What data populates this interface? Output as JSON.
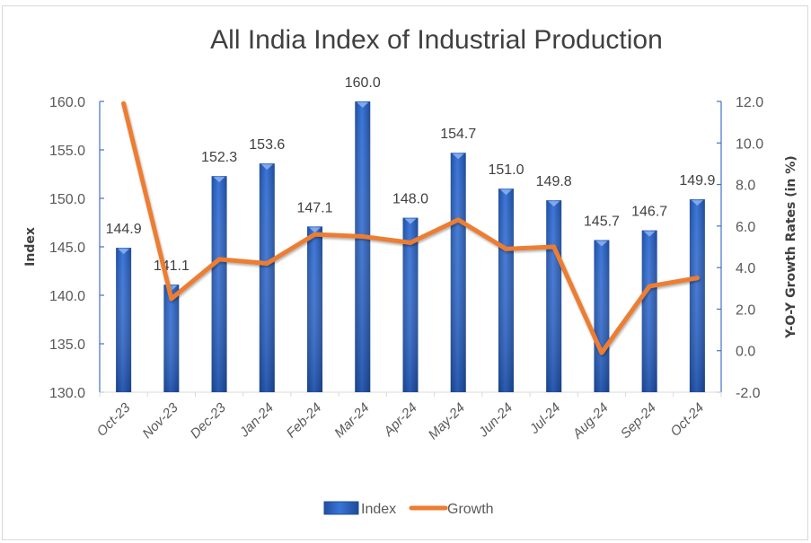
{
  "chart_data": {
    "type": "bar",
    "title": "All India Index of Industrial Production",
    "categories": [
      "Oct-23",
      "Nov-23",
      "Dec-23",
      "Jan-24",
      "Feb-24",
      "Mar-24",
      "Apr-24",
      "May-24",
      "Jun-24",
      "Jul-24",
      "Aug-24",
      "Sep-24",
      "Oct-24"
    ],
    "series": [
      {
        "name": "Index",
        "type": "bar",
        "axis": "left",
        "color": "#2E63C8",
        "values": [
          144.9,
          141.1,
          152.3,
          153.6,
          147.1,
          160.0,
          148.0,
          154.7,
          151.0,
          149.8,
          145.7,
          146.7,
          149.9
        ],
        "labels": [
          "144.9",
          "141.1",
          "152.3",
          "153.6",
          "147.1",
          "160.0",
          "148.0",
          "154.7",
          "151.0",
          "149.8",
          "145.7",
          "146.7",
          "149.9"
        ]
      },
      {
        "name": "Growth",
        "type": "line",
        "axis": "right",
        "color": "#ED7D31",
        "values": [
          11.9,
          2.5,
          4.4,
          4.2,
          5.6,
          5.5,
          5.2,
          6.3,
          4.9,
          5.0,
          -0.1,
          3.1,
          3.5
        ]
      }
    ],
    "ylabel": "Index",
    "ylim": [
      130,
      160
    ],
    "yticks": [
      "130.0",
      "135.0",
      "140.0",
      "145.0",
      "150.0",
      "155.0",
      "160.0"
    ],
    "y2label": "Y-O-Y Growth Rates (in %)",
    "y2lim": [
      -2,
      12
    ],
    "y2ticks": [
      "-2.0",
      "0.0",
      "2.0",
      "4.0",
      "6.0",
      "8.0",
      "10.0",
      "12.0"
    ],
    "xlabel": "",
    "grid": false,
    "legend": {
      "position": "bottom",
      "entries": [
        "Index",
        "Growth"
      ]
    }
  }
}
